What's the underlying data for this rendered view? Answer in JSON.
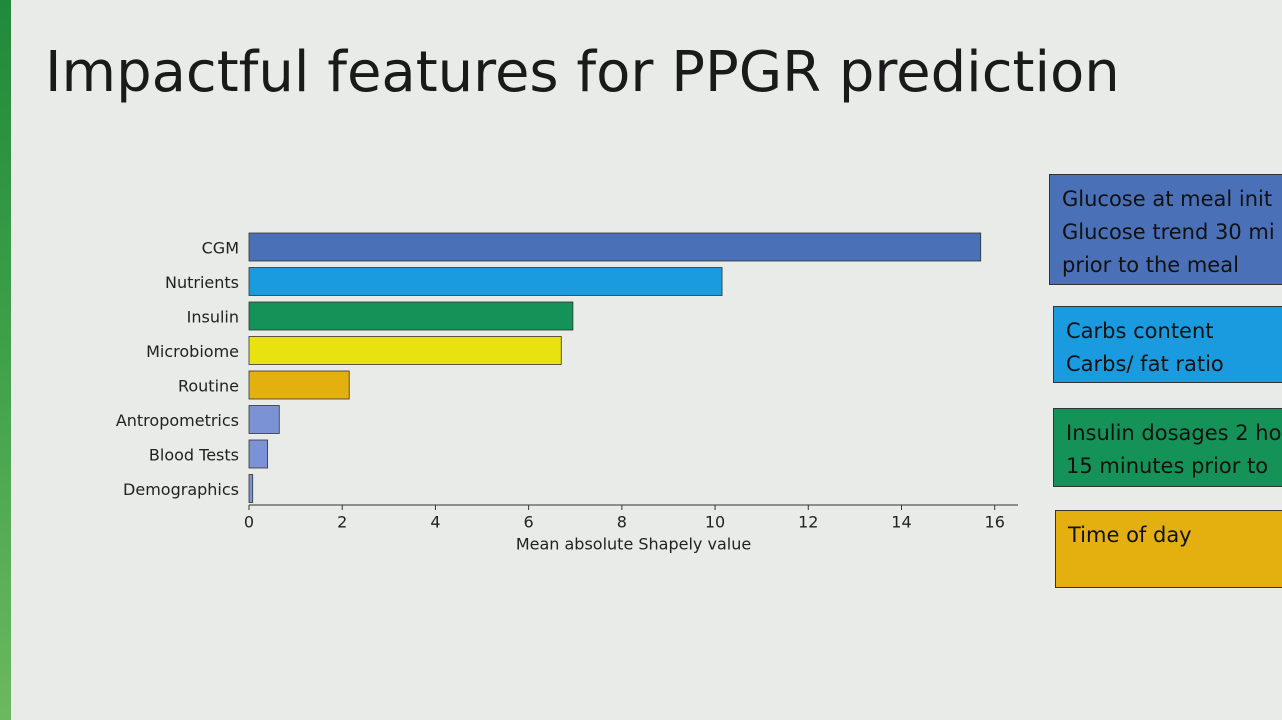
{
  "chart_data": {
    "type": "hbar",
    "title": "Impactful features for PPGR prediction",
    "categories": [
      "CGM",
      "Nutrients",
      "Insulin",
      "Microbiome",
      "Routine",
      "Antropometrics",
      "Blood Tests",
      "Demographics"
    ],
    "values": [
      15.7,
      10.15,
      6.95,
      6.7,
      2.15,
      0.65,
      0.4,
      0.08
    ],
    "colors": [
      "#4a70b8",
      "#1a9be0",
      "#159257",
      "#e8e30f",
      "#e4b010",
      "#7b93d4",
      "#7b93d4",
      "#7b93d4"
    ],
    "xlim": [
      0,
      16.5
    ],
    "xticks": [
      0,
      2,
      4,
      6,
      8,
      10,
      12,
      14,
      16
    ],
    "xlabel": "Mean absolute Shapely value",
    "grid": false,
    "annotations": [
      {
        "lines": [
          "Glucose at meal init",
          "Glucose trend 30 mi",
          "prior to the meal"
        ],
        "color": "#4a70b8"
      },
      {
        "lines": [
          "Carbs content",
          "Carbs/ fat ratio"
        ],
        "color": "#1a9be0"
      },
      {
        "lines": [
          "Insulin dosages 2 ho",
          "15 minutes prior to"
        ],
        "color": "#159257"
      },
      {
        "lines": [
          "Time of day"
        ],
        "color": "#e4b010"
      }
    ]
  }
}
